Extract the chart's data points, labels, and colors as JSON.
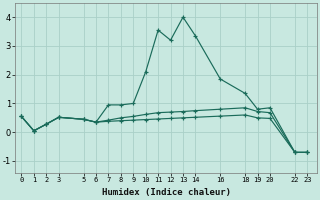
{
  "xlabel": "Humidex (Indice chaleur)",
  "bg_color": "#c8e8e0",
  "grid_color": "#aad0c8",
  "line_color": "#1a6b5a",
  "xlim": [
    -0.5,
    23.8
  ],
  "ylim": [
    -1.4,
    4.5
  ],
  "yticks": [
    -1,
    0,
    1,
    2,
    3,
    4
  ],
  "xtick_labels": [
    "0",
    "1",
    "2",
    "3",
    "5",
    "6",
    "7",
    "8",
    "9",
    "10",
    "11",
    "12",
    "13",
    "14",
    "16",
    "18",
    "19",
    "20",
    "22",
    "23"
  ],
  "xtick_positions": [
    0,
    1,
    2,
    3,
    5,
    6,
    7,
    8,
    9,
    10,
    11,
    12,
    13,
    14,
    16,
    18,
    19,
    20,
    22,
    23
  ],
  "series_main": {
    "x": [
      0,
      1,
      2,
      3,
      5,
      6,
      7,
      8,
      9,
      10,
      11,
      12,
      13,
      14,
      16,
      18,
      19,
      20,
      22,
      23
    ],
    "y": [
      0.55,
      0.05,
      0.28,
      0.52,
      0.45,
      0.35,
      0.95,
      0.95,
      1.0,
      2.1,
      3.55,
      3.2,
      4.0,
      3.35,
      1.85,
      1.35,
      0.8,
      0.85,
      -0.7,
      -0.7
    ]
  },
  "series_mid": {
    "x": [
      0,
      1,
      2,
      3,
      5,
      6,
      7,
      8,
      9,
      10,
      11,
      12,
      13,
      14,
      16,
      18,
      19,
      20,
      22,
      23
    ],
    "y": [
      0.55,
      0.05,
      0.28,
      0.52,
      0.45,
      0.35,
      0.42,
      0.5,
      0.55,
      0.62,
      0.68,
      0.7,
      0.72,
      0.75,
      0.8,
      0.85,
      0.72,
      0.68,
      -0.7,
      -0.7
    ]
  },
  "series_low": {
    "x": [
      0,
      1,
      2,
      3,
      5,
      6,
      7,
      8,
      9,
      10,
      11,
      12,
      13,
      14,
      16,
      18,
      19,
      20,
      22,
      23
    ],
    "y": [
      0.55,
      0.05,
      0.28,
      0.52,
      0.45,
      0.35,
      0.38,
      0.4,
      0.42,
      0.44,
      0.46,
      0.48,
      0.5,
      0.52,
      0.56,
      0.6,
      0.5,
      0.48,
      -0.7,
      -0.7
    ]
  }
}
